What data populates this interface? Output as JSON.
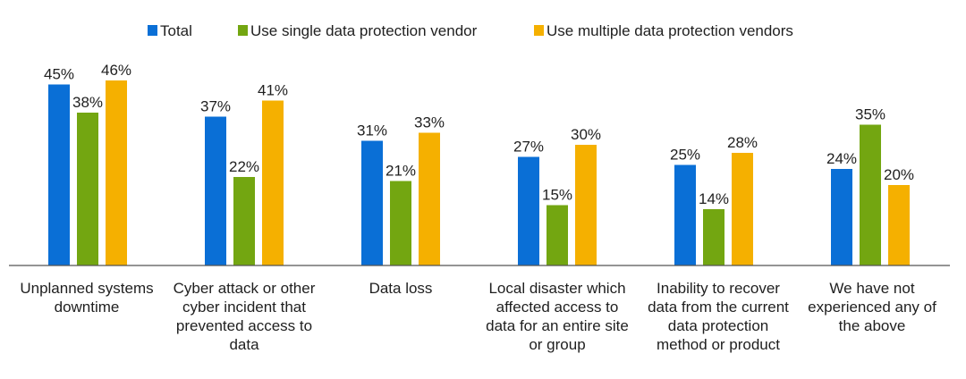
{
  "chart_data": {
    "type": "bar",
    "title": "",
    "xlabel": "",
    "ylabel": "",
    "ylim": [
      0,
      50
    ],
    "grid": false,
    "legend_placement": "top",
    "categories": [
      [
        "Unplanned systems",
        "downtime"
      ],
      [
        "Cyber attack or other",
        "cyber incident that",
        "prevented access to",
        "data"
      ],
      [
        "Data loss"
      ],
      [
        "Local disaster which",
        "affected access to",
        "data for an entire site",
        "or group"
      ],
      [
        "Inability to recover",
        "data from the current",
        "data protection",
        "method or product"
      ],
      [
        "We have not",
        "experienced any of",
        "the above"
      ]
    ],
    "series": [
      {
        "name": "Total",
        "color": "#0a6fd6",
        "values": [
          45,
          37,
          31,
          27,
          25,
          24
        ]
      },
      {
        "name": "Use single data protection vendor",
        "color": "#73a611",
        "values": [
          38,
          22,
          21,
          15,
          14,
          35
        ]
      },
      {
        "name": "Use multiple data protection vendors",
        "color": "#f5b000",
        "values": [
          46,
          41,
          33,
          30,
          28,
          20
        ]
      }
    ],
    "value_suffix": "%"
  }
}
